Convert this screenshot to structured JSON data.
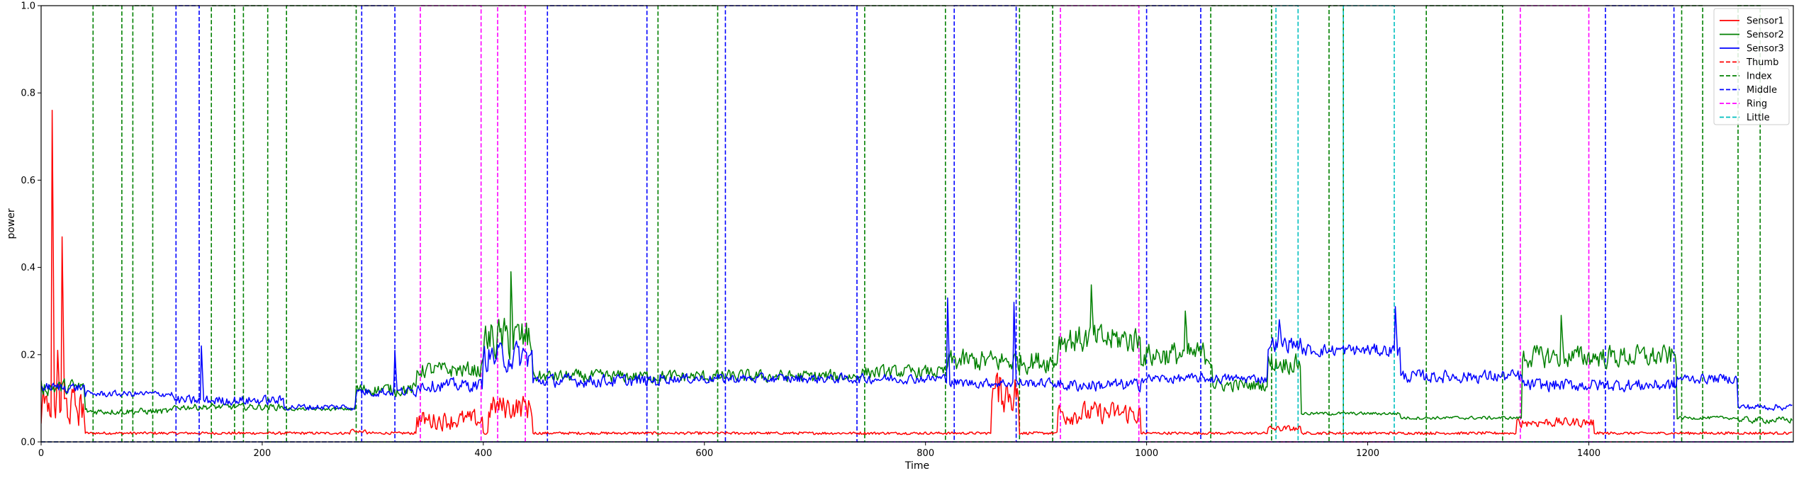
{
  "chart_data": {
    "type": "line",
    "title": "",
    "xlabel": "Time",
    "ylabel": "power",
    "xlim": [
      0,
      1585
    ],
    "ylim": [
      0.0,
      1.0
    ],
    "x_ticks": [
      0,
      200,
      400,
      600,
      800,
      1000,
      1200,
      1400
    ],
    "y_ticks": [
      0.0,
      0.2,
      0.4,
      0.6,
      0.8,
      1.0
    ],
    "x_tick_labels": [
      "0",
      "200",
      "400",
      "600",
      "800",
      "1000",
      "1200",
      "1400"
    ],
    "y_tick_labels": [
      "0.0",
      "0.2",
      "0.4",
      "0.6",
      "0.8",
      "1.0"
    ],
    "legend_position": "top-right",
    "series": [
      {
        "name": "Sensor1",
        "color": "#ff0000",
        "style": "solid",
        "baseline": 0.02,
        "segments": [
          {
            "x": [
              0,
              40
            ],
            "values": [
              0.02,
              0.14
            ]
          },
          {
            "x": [
              280,
              295
            ],
            "values": [
              0.02,
              0.03
            ]
          },
          {
            "x": [
              340,
              400
            ],
            "values": [
              0.02,
              0.08
            ]
          },
          {
            "x": [
              405,
              445
            ],
            "values": [
              0.04,
              0.12
            ]
          },
          {
            "x": [
              860,
              885
            ],
            "values": [
              0.05,
              0.18
            ]
          },
          {
            "x": [
              920,
              995
            ],
            "values": [
              0.03,
              0.1
            ]
          },
          {
            "x": [
              1110,
              1140
            ],
            "values": [
              0.02,
              0.04
            ]
          },
          {
            "x": [
              1335,
              1405
            ],
            "values": [
              0.03,
              0.06
            ]
          }
        ],
        "peaks": [
          {
            "x": 10,
            "value": 0.76
          },
          {
            "x": 19,
            "value": 0.47
          },
          {
            "x": 15,
            "value": 0.21
          },
          {
            "x": 6,
            "value": 0.07
          }
        ]
      },
      {
        "name": "Sensor2",
        "color": "#008000",
        "style": "solid",
        "segments": [
          {
            "x": [
              0,
              40
            ],
            "values": [
              0.1,
              0.15
            ]
          },
          {
            "x": [
              40,
              120
            ],
            "values": [
              0.06,
              0.08
            ]
          },
          {
            "x": [
              120,
              220
            ],
            "values": [
              0.07,
              0.09
            ]
          },
          {
            "x": [
              220,
              285
            ],
            "values": [
              0.07,
              0.08
            ]
          },
          {
            "x": [
              285,
              340
            ],
            "values": [
              0.1,
              0.14
            ]
          },
          {
            "x": [
              340,
              400
            ],
            "values": [
              0.14,
              0.19
            ]
          },
          {
            "x": [
              400,
              445
            ],
            "values": [
              0.17,
              0.3
            ]
          },
          {
            "x": [
              445,
              560
            ],
            "values": [
              0.13,
              0.17
            ]
          },
          {
            "x": [
              560,
              740
            ],
            "values": [
              0.13,
              0.17
            ]
          },
          {
            "x": [
              740,
              820
            ],
            "values": [
              0.14,
              0.18
            ]
          },
          {
            "x": [
              820,
              920
            ],
            "values": [
              0.15,
              0.22
            ]
          },
          {
            "x": [
              920,
              995
            ],
            "values": [
              0.19,
              0.28
            ]
          },
          {
            "x": [
              995,
              1060
            ],
            "values": [
              0.16,
              0.24
            ]
          },
          {
            "x": [
              1060,
              1110
            ],
            "values": [
              0.11,
              0.15
            ]
          },
          {
            "x": [
              1110,
              1140
            ],
            "values": [
              0.15,
              0.21
            ]
          },
          {
            "x": [
              1140,
              1230
            ],
            "values": [
              0.06,
              0.07
            ]
          },
          {
            "x": [
              1230,
              1340
            ],
            "values": [
              0.05,
              0.06
            ]
          },
          {
            "x": [
              1340,
              1480
            ],
            "values": [
              0.16,
              0.23
            ]
          },
          {
            "x": [
              1480,
              1535
            ],
            "values": [
              0.05,
              0.06
            ]
          },
          {
            "x": [
              1535,
              1585
            ],
            "values": [
              0.04,
              0.06
            ]
          }
        ],
        "peaks": [
          {
            "x": 425,
            "value": 0.39
          },
          {
            "x": 950,
            "value": 0.36
          },
          {
            "x": 1035,
            "value": 0.3
          },
          {
            "x": 1375,
            "value": 0.29
          }
        ]
      },
      {
        "name": "Sensor3",
        "color": "#0000ff",
        "style": "solid",
        "segments": [
          {
            "x": [
              0,
              40
            ],
            "values": [
              0.11,
              0.14
            ]
          },
          {
            "x": [
              40,
              120
            ],
            "values": [
              0.1,
              0.12
            ]
          },
          {
            "x": [
              120,
              220
            ],
            "values": [
              0.08,
              0.11
            ]
          },
          {
            "x": [
              220,
              285
            ],
            "values": [
              0.07,
              0.09
            ]
          },
          {
            "x": [
              285,
              340
            ],
            "values": [
              0.1,
              0.13
            ]
          },
          {
            "x": [
              340,
              400
            ],
            "values": [
              0.11,
              0.15
            ]
          },
          {
            "x": [
              400,
              445
            ],
            "values": [
              0.15,
              0.24
            ]
          },
          {
            "x": [
              445,
              560
            ],
            "values": [
              0.12,
              0.16
            ]
          },
          {
            "x": [
              560,
              740
            ],
            "values": [
              0.13,
              0.16
            ]
          },
          {
            "x": [
              740,
              820
            ],
            "values": [
              0.13,
              0.16
            ]
          },
          {
            "x": [
              820,
              920
            ],
            "values": [
              0.12,
              0.15
            ]
          },
          {
            "x": [
              920,
              995
            ],
            "values": [
              0.11,
              0.15
            ]
          },
          {
            "x": [
              995,
              1060
            ],
            "values": [
              0.13,
              0.16
            ]
          },
          {
            "x": [
              1060,
              1110
            ],
            "values": [
              0.13,
              0.16
            ]
          },
          {
            "x": [
              1110,
              1140
            ],
            "values": [
              0.2,
              0.25
            ]
          },
          {
            "x": [
              1140,
              1230
            ],
            "values": [
              0.19,
              0.23
            ]
          },
          {
            "x": [
              1230,
              1340
            ],
            "values": [
              0.13,
              0.17
            ]
          },
          {
            "x": [
              1340,
              1480
            ],
            "values": [
              0.11,
              0.15
            ]
          },
          {
            "x": [
              1480,
              1535
            ],
            "values": [
              0.13,
              0.16
            ]
          },
          {
            "x": [
              1535,
              1585
            ],
            "values": [
              0.07,
              0.09
            ]
          }
        ],
        "peaks": [
          {
            "x": 820,
            "value": 0.33
          },
          {
            "x": 880,
            "value": 0.32
          },
          {
            "x": 1225,
            "value": 0.31
          },
          {
            "x": 1120,
            "value": 0.28
          },
          {
            "x": 145,
            "value": 0.22
          },
          {
            "x": 320,
            "value": 0.21
          }
        ]
      },
      {
        "name": "Thumb",
        "color": "#ff0000",
        "style": "dashed",
        "value_low": 0.0,
        "value_high": 1.0,
        "intervals": []
      },
      {
        "name": "Index",
        "color": "#008000",
        "style": "dashed",
        "value_low": 0.0,
        "value_high": 1.0,
        "intervals": [
          [
            47,
            73
          ],
          [
            83,
            101
          ],
          [
            154,
            175
          ],
          [
            183,
            205
          ],
          [
            222,
            285
          ],
          [
            558,
            612
          ],
          [
            745,
            818
          ],
          [
            885,
            915
          ],
          [
            1058,
            1113
          ],
          [
            1165,
            1178
          ],
          [
            1253,
            1322
          ],
          [
            1484,
            1503
          ],
          [
            1535,
            1555
          ]
        ]
      },
      {
        "name": "Middle",
        "color": "#0000ff",
        "style": "dashed",
        "value_low": 0.0,
        "value_high": 1.0,
        "intervals": [
          [
            122,
            143
          ],
          [
            290,
            320
          ],
          [
            458,
            548
          ],
          [
            619,
            738
          ],
          [
            826,
            882
          ],
          [
            1000,
            1049
          ],
          [
            1415,
            1477
          ]
        ]
      },
      {
        "name": "Ring",
        "color": "#ff00ff",
        "style": "dashed",
        "value_low": 0.0,
        "value_high": 1.0,
        "intervals": [
          [
            343,
            398
          ],
          [
            413,
            438
          ],
          [
            922,
            993
          ],
          [
            1338,
            1400
          ]
        ]
      },
      {
        "name": "Little",
        "color": "#00bfbf",
        "style": "dashed",
        "value_low": 0.0,
        "value_high": 1.0,
        "intervals": [
          [
            1117,
            1137
          ],
          [
            1178,
            1224
          ]
        ]
      }
    ]
  }
}
